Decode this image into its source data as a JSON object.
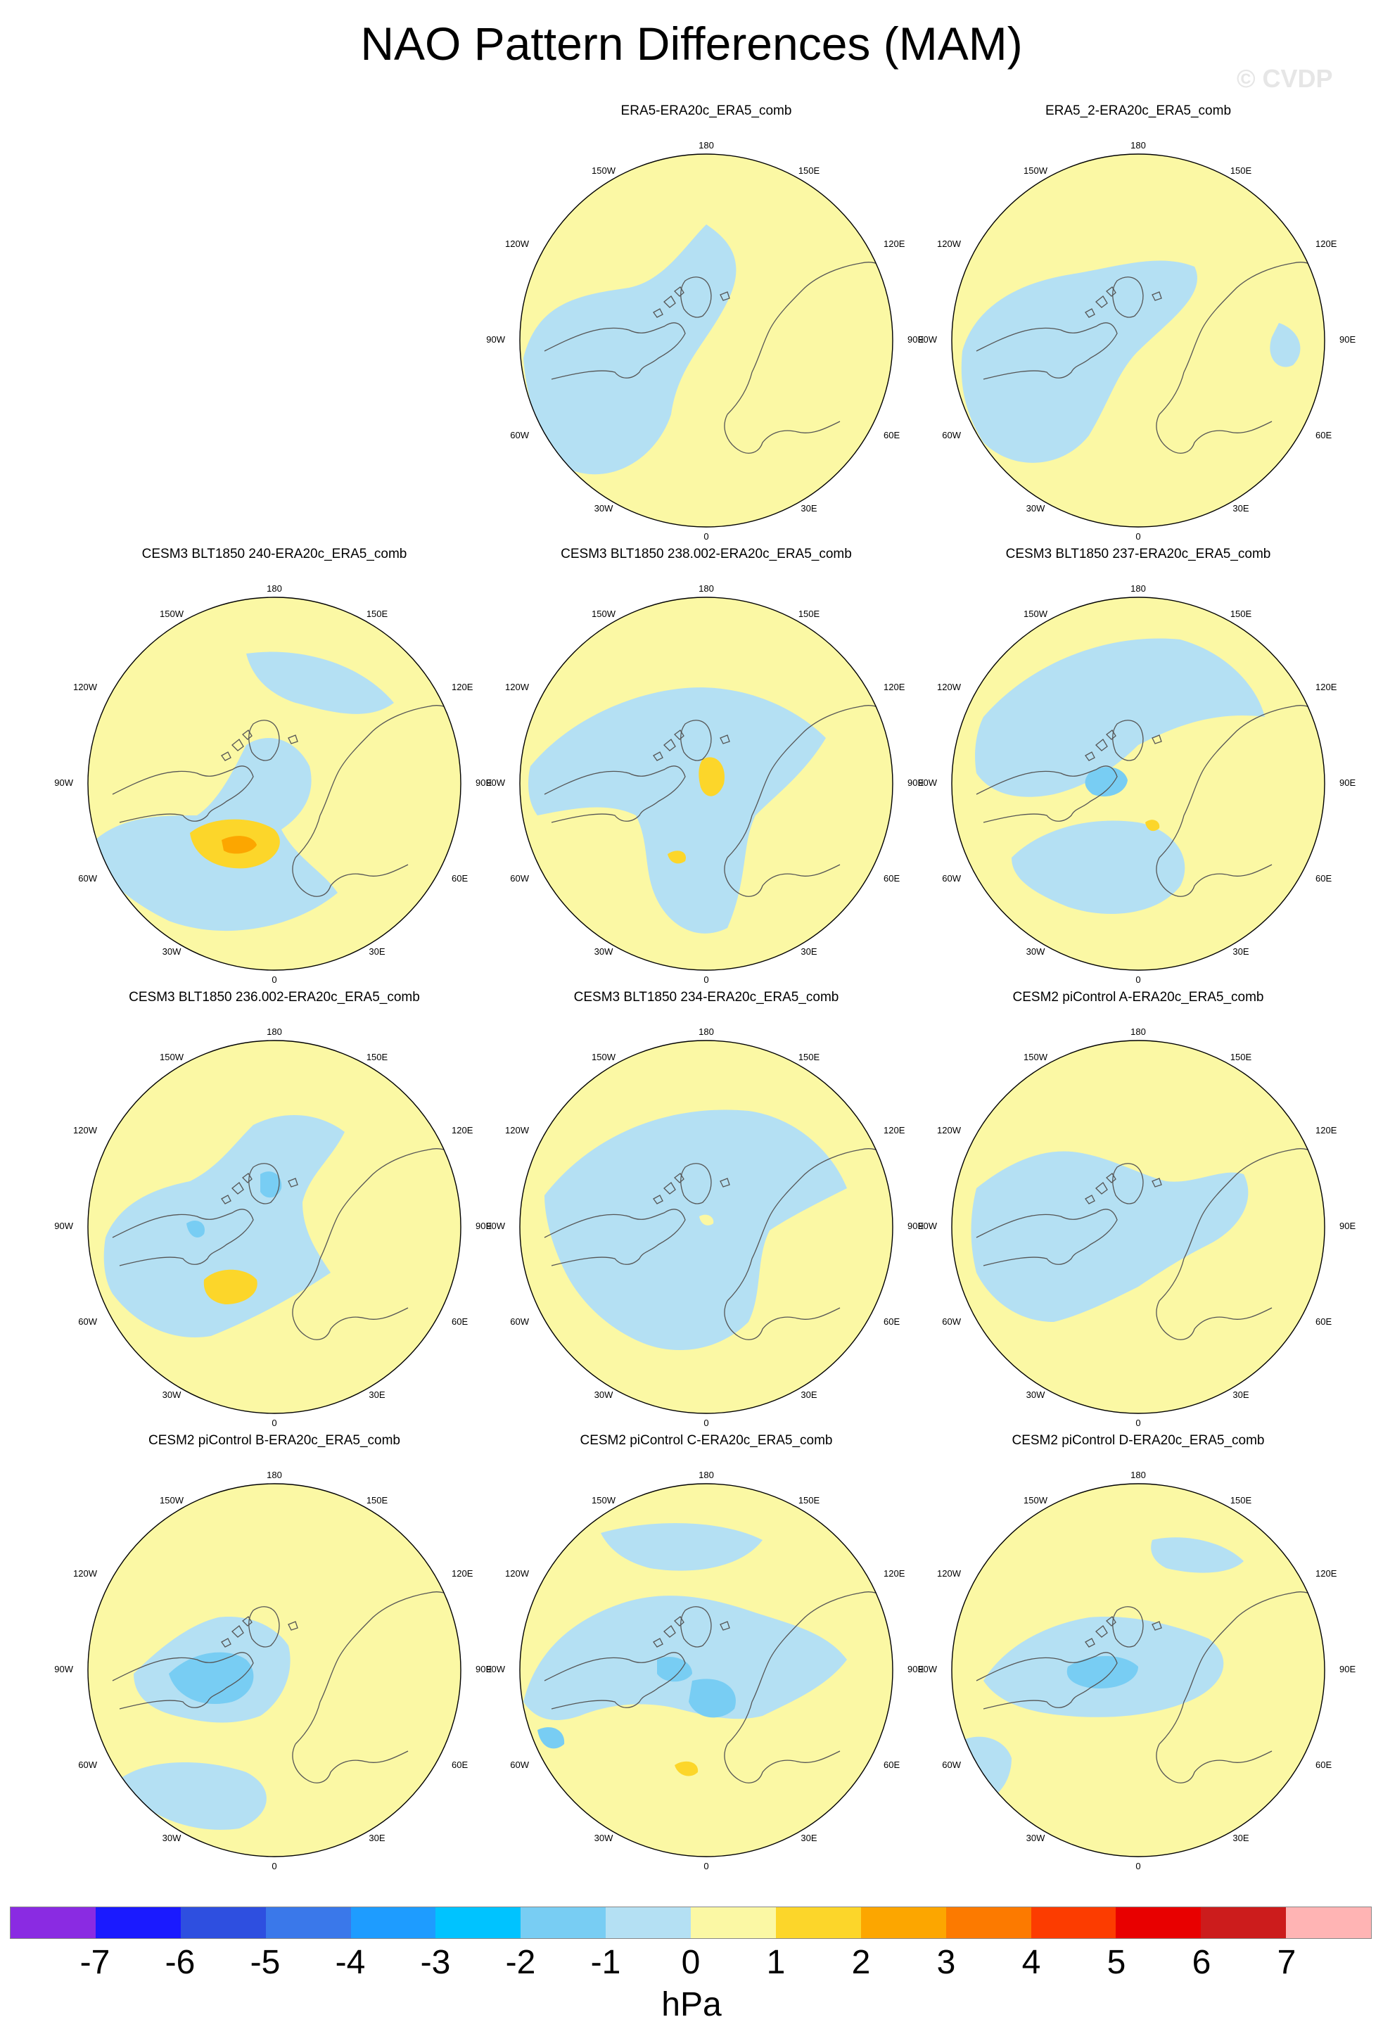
{
  "header": {
    "title": "NAO Pattern Differences (MAM)",
    "watermark": "© CVDP"
  },
  "map_labels": {
    "lon_0": "0",
    "lon_30E": "30E",
    "lon_60E": "60E",
    "lon_90E": "90E",
    "lon_120E": "120E",
    "lon_150E": "150E",
    "lon_180": "180",
    "lon_150W": "150W",
    "lon_120W": "120W",
    "lon_90W": "90W",
    "lon_60W": "60W",
    "lon_30W": "30W"
  },
  "panels": [
    {
      "title": "ERA5-ERA20c_ERA5_comb",
      "col": 1,
      "row": 0
    },
    {
      "title": "ERA5_2-ERA20c_ERA5_comb",
      "col": 2,
      "row": 0
    },
    {
      "title": "CESM3 BLT1850 240-ERA20c_ERA5_comb",
      "col": 0,
      "row": 1
    },
    {
      "title": "CESM3 BLT1850 238.002-ERA20c_ERA5_comb",
      "col": 1,
      "row": 1
    },
    {
      "title": "CESM3 BLT1850 237-ERA20c_ERA5_comb",
      "col": 2,
      "row": 1
    },
    {
      "title": "CESM3 BLT1850 236.002-ERA20c_ERA5_comb",
      "col": 0,
      "row": 2
    },
    {
      "title": "CESM3 BLT1850 234-ERA20c_ERA5_comb",
      "col": 1,
      "row": 2
    },
    {
      "title": "CESM2 piControl A-ERA20c_ERA5_comb",
      "col": 2,
      "row": 2
    },
    {
      "title": "CESM2 piControl B-ERA20c_ERA5_comb",
      "col": 0,
      "row": 3
    },
    {
      "title": "CESM2 piControl C-ERA20c_ERA5_comb",
      "col": 1,
      "row": 3
    },
    {
      "title": "CESM2 piControl D-ERA20c_ERA5_comb",
      "col": 2,
      "row": 3
    }
  ],
  "colorbar": {
    "units": "hPa",
    "labels": [
      "-7",
      "-6",
      "-5",
      "-4",
      "-3",
      "-2",
      "-1",
      "0",
      "1",
      "2",
      "3",
      "4",
      "5",
      "6",
      "7"
    ],
    "colors": [
      "#8a2be2",
      "#1a1aff",
      "#2e4fe0",
      "#3a78ea",
      "#1e9cff",
      "#00c3ff",
      "#78cdf3",
      "#b4e0f3",
      "#fbf8a4",
      "#fcd62a",
      "#fca600",
      "#fc7a00",
      "#fc3c00",
      "#e80000",
      "#cc1c1c",
      "#ffb4b4"
    ]
  }
}
